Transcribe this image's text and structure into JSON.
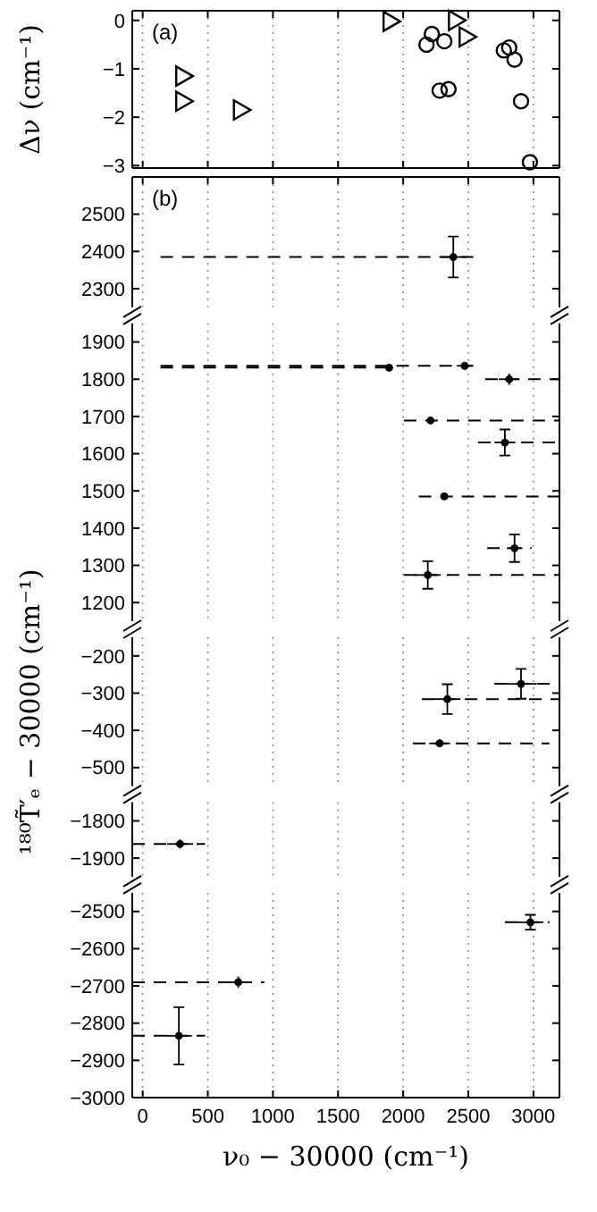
{
  "chart_data": [
    {
      "type": "scatter",
      "ylabel": "Δν (cm⁻¹)",
      "annotations": [
        "(a)"
      ],
      "xlim": [
        -80,
        3200
      ],
      "xticks": [
        0,
        500,
        1000,
        1500,
        2000,
        2500,
        3000
      ],
      "ylim": [
        -3.05,
        0.2
      ],
      "yticks": [
        -3,
        -2,
        -1,
        0
      ],
      "tick_labels": "y",
      "grid": "x",
      "series": [
        {
          "color": "#000000",
          "marker": "triangle",
          "x": [
            300,
            300,
            743,
            1892,
            2394,
            2476
          ],
          "values": [
            -1.15,
            -1.67,
            -1.85,
            -0.02,
            0,
            -0.34
          ]
        },
        {
          "color": "#000000",
          "marker": "circle",
          "x": [
            2220,
            2179,
            2316,
            2280,
            2348,
            2773,
            2814,
            2855,
            2905,
            2973
          ],
          "values": [
            -0.28,
            -0.5,
            -0.43,
            -1.45,
            -1.42,
            -0.62,
            -0.56,
            -0.81,
            -1.67,
            -2.93
          ]
        }
      ]
    },
    {
      "type": "scatter",
      "annotations": [
        "(b)"
      ],
      "xlim": [
        -80,
        3200
      ],
      "xticks": [
        0,
        500,
        1000,
        1500,
        2000,
        2500,
        3000
      ],
      "ylim": [
        2250,
        2600
      ],
      "yticks": [
        2300,
        2400,
        2500
      ],
      "tick_labels": "y",
      "grid": "x",
      "series": [
        {
          "color": "#000000",
          "marker": "circle",
          "x": [
            2385
          ],
          "values": [
            2385
          ],
          "errors": [
            55
          ],
          "xerrors": [
            100
          ]
        },
        {
          "type": "line",
          "color": "#000000",
          "line_style": "dashed",
          "marker": "none",
          "x": [
            137,
            2540
          ],
          "values": [
            2385,
            2385
          ]
        }
      ]
    },
    {
      "type": "scatter",
      "xlim": [
        -80,
        3200
      ],
      "xticks": [
        0,
        500,
        1000,
        1500,
        2000,
        2500,
        3000
      ],
      "ylim": [
        1150,
        1950
      ],
      "yticks": [
        1200,
        1300,
        1400,
        1500,
        1600,
        1700,
        1800,
        1900
      ],
      "tick_labels": "y",
      "grid": "x",
      "series": [
        {
          "color": "#000000",
          "marker": "circle",
          "x": [
            1892,
            2472,
            2814,
            2210,
            2781,
            2316,
            2855,
            2189
          ],
          "values": [
            1831,
            1836,
            1800,
            1689,
            1630,
            1485,
            1346,
            1274
          ],
          "errors": [
            10,
            10,
            15,
            null,
            35,
            null,
            37,
            37
          ],
          "xerrors": [
            30,
            60,
            80,
            null,
            80,
            null,
            60,
            100
          ]
        },
        {
          "type": "line",
          "color": "#000000",
          "line_style": "dashed",
          "marker": "none",
          "x": [
            137,
            1892
          ],
          "values": [
            1831,
            1831
          ]
        },
        {
          "type": "line",
          "color": "#000000",
          "line_style": "dashed",
          "marker": "none",
          "x": [
            137,
            2540
          ],
          "values": [
            1836,
            1836
          ]
        },
        {
          "type": "line",
          "color": "#000000",
          "line_style": "dashed",
          "marker": "none",
          "x": [
            2630,
            3200
          ],
          "values": [
            1800,
            1800
          ]
        },
        {
          "type": "line",
          "color": "#000000",
          "line_style": "dashed",
          "marker": "none",
          "x": [
            2005,
            3200
          ],
          "values": [
            1689,
            1689
          ]
        },
        {
          "type": "line",
          "color": "#000000",
          "line_style": "dashed",
          "marker": "none",
          "x": [
            2576,
            3200
          ],
          "values": [
            1630,
            1630
          ]
        },
        {
          "type": "line",
          "color": "#000000",
          "line_style": "dashed",
          "marker": "none",
          "x": [
            2120,
            3200
          ],
          "values": [
            1485,
            1485
          ]
        },
        {
          "type": "line",
          "color": "#000000",
          "line_style": "dashed",
          "marker": "none",
          "x": [
            2645,
            2986
          ],
          "values": [
            1346,
            1346
          ]
        },
        {
          "type": "line",
          "color": "#000000",
          "line_style": "dashed",
          "marker": "none",
          "x": [
            2005,
            3200
          ],
          "values": [
            1274,
            1274
          ]
        }
      ]
    },
    {
      "type": "scatter",
      "ylabel": "¹⁸⁰T̃′ₑ − 30000 (cm⁻¹)",
      "xlim": [
        -80,
        3200
      ],
      "xticks": [
        0,
        500,
        1000,
        1500,
        2000,
        2500,
        3000
      ],
      "ylim": [
        -550,
        -150
      ],
      "yticks": [
        -500,
        -400,
        -300,
        -200
      ],
      "tick_labels": "y",
      "grid": "x",
      "series": [
        {
          "color": "#000000",
          "marker": "circle",
          "x": [
            2339,
            2905,
            2280
          ],
          "values": [
            -316,
            -275,
            -435
          ],
          "errors": [
            40,
            40,
            10
          ],
          "xerrors": [
            100,
            120,
            80
          ]
        },
        {
          "type": "line",
          "color": "#000000",
          "line_style": "dashed",
          "marker": "none",
          "x": [
            2143,
            3200
          ],
          "values": [
            -316,
            -316
          ]
        },
        {
          "type": "line",
          "color": "#000000",
          "line_style": "dashed",
          "marker": "none",
          "x": [
            2700,
            3200
          ],
          "values": [
            -275,
            -275
          ]
        },
        {
          "type": "line",
          "color": "#000000",
          "line_style": "dashed",
          "marker": "none",
          "x": [
            2075,
            3123
          ],
          "values": [
            -435,
            -435
          ]
        }
      ]
    },
    {
      "type": "scatter",
      "xlim": [
        -80,
        3200
      ],
      "xticks": [
        0,
        500,
        1000,
        1500,
        2000,
        2500,
        3000
      ],
      "ylim": [
        -1950,
        -1750
      ],
      "yticks": [
        -1900,
        -1800
      ],
      "tick_labels": "y",
      "grid": "x",
      "series": [
        {
          "color": "#000000",
          "marker": "circle",
          "x": [
            287
          ],
          "values": [
            -1862
          ],
          "errors": [
            12
          ],
          "xerrors": [
            100
          ]
        },
        {
          "type": "line",
          "color": "#000000",
          "line_style": "dashed",
          "marker": "none",
          "x": [
            -80,
            479
          ],
          "values": [
            -1862,
            -1862
          ]
        }
      ]
    },
    {
      "type": "scatter",
      "xlabel": "ν₀ − 30000 (cm⁻¹)",
      "xlim": [
        -80,
        3200
      ],
      "xticks": [
        0,
        500,
        1000,
        1500,
        2000,
        2500,
        3000
      ],
      "ylim": [
        -3000,
        -2450
      ],
      "yticks": [
        -3000,
        -2900,
        -2800,
        -2700,
        -2600,
        -2500
      ],
      "grid": "x",
      "series": [
        {
          "color": "#000000",
          "marker": "circle",
          "x": [
            2977,
            734,
            278
          ],
          "values": [
            -2529,
            -2690,
            -2834
          ],
          "errors": [
            20,
            15,
            77
          ],
          "xerrors": [
            100,
            80,
            100
          ]
        },
        {
          "type": "line",
          "color": "#000000",
          "line_style": "dashed",
          "marker": "none",
          "x": [
            2781,
            3123
          ],
          "values": [
            -2529,
            -2529
          ]
        },
        {
          "type": "line",
          "color": "#000000",
          "line_style": "dashed",
          "marker": "none",
          "x": [
            -80,
            934
          ],
          "values": [
            -2690,
            -2690
          ]
        },
        {
          "type": "line",
          "color": "#000000",
          "line_style": "dashed",
          "marker": "none",
          "x": [
            -80,
            479
          ],
          "values": [
            -2834,
            -2834
          ]
        }
      ]
    }
  ]
}
